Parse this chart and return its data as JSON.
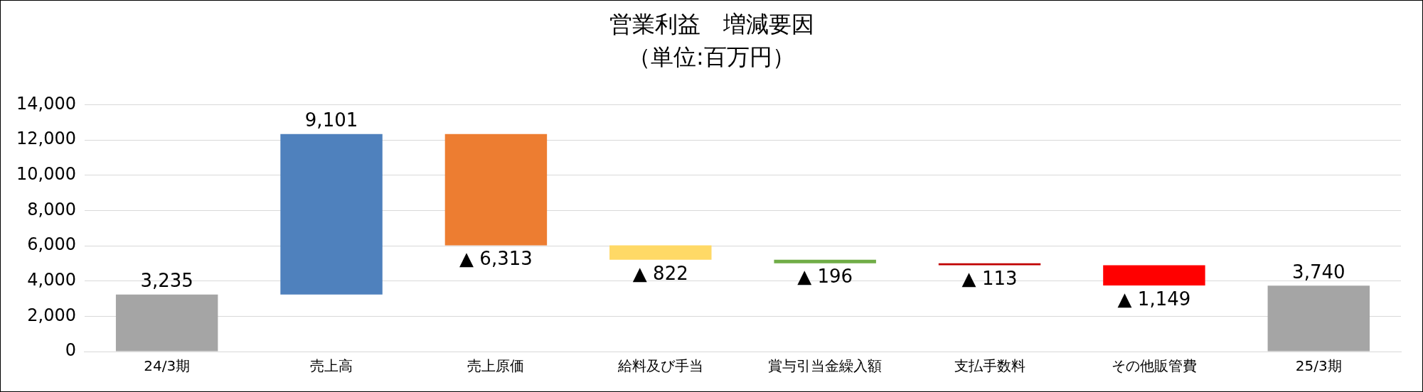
{
  "chart_data": {
    "type": "bar",
    "title": "営業利益　増減要因",
    "subtitle": "（単位:百万円）",
    "categories": [
      "24/3期",
      "売上高",
      "売上原価",
      "給料及び手当",
      "賞与引当金繰入額",
      "支払手数料",
      "その他販管費",
      "25/3期"
    ],
    "values": [
      3235,
      9101,
      -6313,
      -822,
      -196,
      -113,
      -1149,
      3740
    ],
    "base": [
      0,
      3235,
      12336,
      6023,
      5201,
      5005,
      4892,
      0
    ],
    "colors": [
      "#a5a5a5",
      "#4f81bd",
      "#ed7d31",
      "#ffd966",
      "#70ad47",
      "#c00000",
      "#ff0000",
      "#a5a5a5"
    ],
    "value_labels": [
      "3,235",
      "9,101",
      "▲ 6,313",
      "▲ 822",
      "▲ 196",
      "▲ 113",
      "▲ 1,149",
      "3,740"
    ],
    "ylim": [
      0,
      14000
    ],
    "yticks": [
      0,
      {
        "value": 2000,
        "label": "2,000"
      },
      {
        "value": 4000,
        "label": "4,000"
      },
      {
        "value": 6000,
        "label": "6,000"
      },
      {
        "value": 8000,
        "label": "8,000"
      },
      {
        "value": 10000,
        "label": "10,000"
      },
      {
        "value": 12000,
        "label": "12,000"
      },
      {
        "value": 14000,
        "label": "14,000"
      }
    ],
    "grid": "y",
    "legend": false
  }
}
